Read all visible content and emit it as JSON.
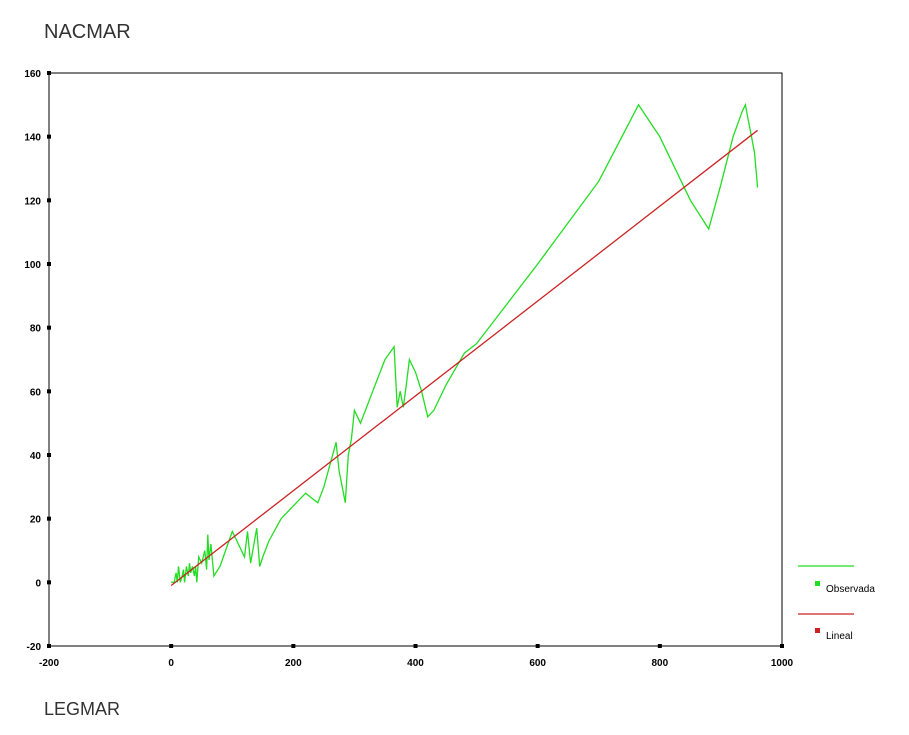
{
  "chart_data": {
    "type": "line",
    "ylabel": "NACMAR",
    "xlabel": "LEGMAR",
    "xlim": [
      -200,
      1000
    ],
    "ylim": [
      -20,
      160
    ],
    "x_ticks": [
      -200,
      0,
      200,
      400,
      600,
      800,
      1000
    ],
    "y_ticks": [
      -20,
      0,
      20,
      40,
      60,
      80,
      100,
      120,
      140,
      160
    ],
    "grid": false,
    "legend_position": "right",
    "series": [
      {
        "name": "Observada",
        "color": "#22dd22",
        "x": [
          0,
          5,
          8,
          10,
          12,
          15,
          18,
          20,
          22,
          25,
          28,
          30,
          32,
          35,
          38,
          40,
          42,
          45,
          50,
          55,
          58,
          60,
          62,
          65,
          70,
          80,
          100,
          110,
          120,
          125,
          130,
          140,
          145,
          150,
          160,
          180,
          200,
          220,
          240,
          250,
          270,
          275,
          280,
          285,
          290,
          295,
          300,
          310,
          330,
          350,
          365,
          370,
          375,
          380,
          385,
          390,
          400,
          410,
          420,
          430,
          450,
          480,
          500,
          600,
          700,
          765,
          800,
          850,
          880,
          900,
          920,
          935,
          940,
          945,
          950,
          955,
          960
        ],
        "y": [
          0,
          0,
          3,
          0,
          5,
          0,
          2,
          4,
          0,
          5,
          2,
          6,
          3,
          5,
          2,
          5,
          0,
          8,
          6,
          10,
          4,
          15,
          7,
          12,
          2,
          5,
          16,
          12,
          8,
          16,
          6,
          17,
          5,
          8,
          13,
          20,
          24,
          28,
          25,
          30,
          44,
          35,
          30,
          25,
          40,
          45,
          54,
          50,
          60,
          70,
          74,
          55,
          60,
          55,
          62,
          70,
          66,
          60,
          52,
          54,
          62,
          72,
          75,
          100,
          126,
          150,
          140,
          120,
          111,
          125,
          140,
          148,
          150,
          145,
          140,
          135,
          124
        ]
      },
      {
        "name": "Lineal",
        "color": "#cc2222",
        "x": [
          0,
          960
        ],
        "y": [
          -1,
          142
        ]
      }
    ]
  }
}
